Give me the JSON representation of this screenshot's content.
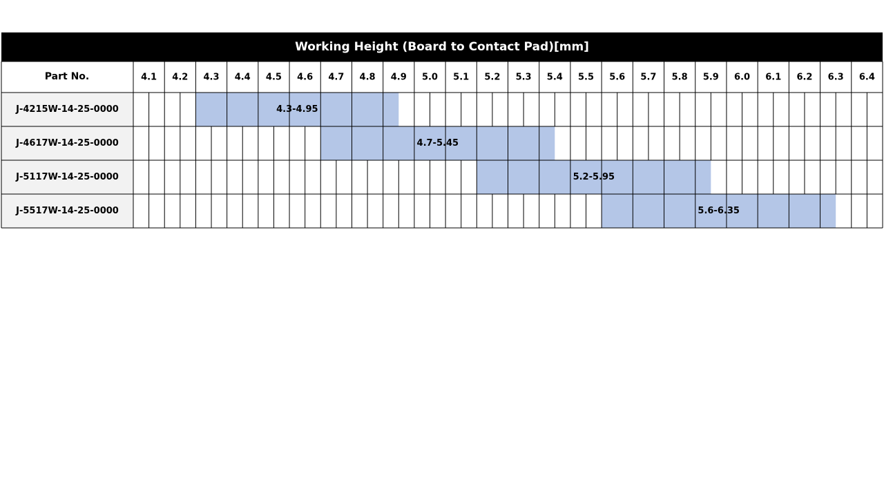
{
  "title": "Working Height (Board to Contact Pad)[mm]",
  "header": {
    "part": "Part No.",
    "columns": [
      "4.1",
      "4.2",
      "4.3",
      "4.4",
      "4.5",
      "4.6",
      "4.7",
      "4.8",
      "4.9",
      "5.0",
      "5.1",
      "5.2",
      "5.3",
      "5.4",
      "5.5",
      "5.6",
      "5.7",
      "5.8",
      "5.9",
      "6.0",
      "6.1",
      "6.2",
      "6.3",
      "6.4"
    ]
  },
  "rows": [
    {
      "part": "J-4215W-14-25-0000",
      "start": 4.3,
      "end": 4.95,
      "label": "4.3-4.95",
      "color": "#b4c6e7"
    },
    {
      "part": "J-4617W-14-25-0000",
      "start": 4.7,
      "end": 5.45,
      "label": "4.7-5.45",
      "color": "#b4c6e7"
    },
    {
      "part": "J-5117W-14-25-0000",
      "start": 5.2,
      "end": 5.95,
      "label": "5.2-5.95",
      "color": "#b4c6e7"
    },
    {
      "part": "J-5517W-14-25-0000",
      "start": 5.6,
      "end": 6.35,
      "label": "5.6-6.35",
      "color": "#b4c6e7"
    }
  ]
}
